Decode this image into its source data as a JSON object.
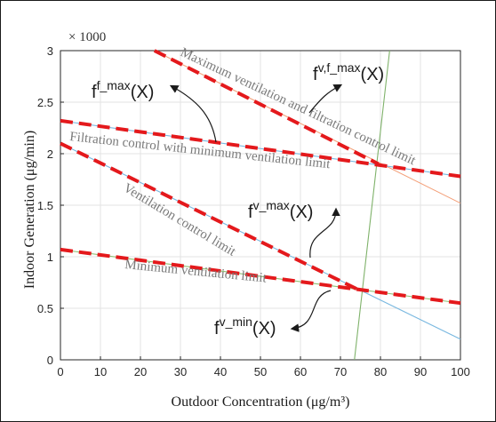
{
  "chart_data": {
    "type": "line",
    "xlabel": "Outdoor Concentration (μg/m³)",
    "ylabel": "Indoor Generation (μg/min)",
    "y_multiplier": "× 1000",
    "xlim": [
      0,
      100
    ],
    "ylim": [
      0,
      3
    ],
    "x_ticks": [
      0,
      10,
      20,
      30,
      40,
      50,
      60,
      70,
      80,
      90,
      100
    ],
    "y_ticks": [
      0,
      0.5,
      1,
      1.5,
      2,
      2.5,
      3
    ],
    "grid": true,
    "series": [
      {
        "name": "Maximum ventilation and filtration control limit",
        "color": "#f4a27c",
        "style": "solid-thin",
        "points": [
          [
            23.5,
            3.0
          ],
          [
            100,
            1.52
          ]
        ]
      },
      {
        "name": "Filtration control with minimum ventilation limit",
        "color": "#79b8e0",
        "style": "solid-thin",
        "points": [
          [
            0,
            2.32
          ],
          [
            100,
            1.78
          ]
        ]
      },
      {
        "name": "Ventilation control limit",
        "color": "#79b8e0",
        "style": "solid-thin",
        "points": [
          [
            0,
            2.1
          ],
          [
            100,
            0.2
          ]
        ]
      },
      {
        "name": "Minimum ventilation limit",
        "color": "#8fbf73",
        "style": "solid-thin",
        "points": [
          [
            0,
            1.07
          ],
          [
            100,
            0.55
          ]
        ]
      },
      {
        "name": "",
        "color": "#7fb26a",
        "style": "solid-thin",
        "points": [
          [
            73.5,
            0.0
          ],
          [
            82.3,
            3.0
          ]
        ]
      }
    ],
    "model_curves": [
      {
        "label": "f^{v,f_max}(X)",
        "color": "#e4191c",
        "points": [
          [
            23.5,
            3.0
          ],
          [
            79.5,
            1.9
          ]
        ]
      },
      {
        "label": "f^{f_max}(X)",
        "color": "#e4191c",
        "points": [
          [
            0,
            2.32
          ],
          [
            100,
            1.78
          ]
        ]
      },
      {
        "label": "f^{v_max}(X)",
        "color": "#e4191c",
        "points": [
          [
            0,
            2.1
          ],
          [
            75,
            0.67
          ]
        ]
      },
      {
        "label": "f^{v_min}(X)",
        "color": "#e4191c",
        "points": [
          [
            0,
            1.07
          ],
          [
            100,
            0.55
          ]
        ]
      }
    ],
    "annotations": {
      "max_vent_filt": "Maximum ventilation and filtration control limit",
      "filt_min_vent": "Filtration control with minimum ventilation limit",
      "vent_control": "Ventilation control limit",
      "min_vent": "Minimum ventilation limit",
      "f_vf_max": "f",
      "f_vf_max_sup": "v,f_max",
      "f_vf_max_arg": "(X)",
      "f_f_max": "f",
      "f_f_max_sup": "f_max",
      "f_f_max_arg": "(X)",
      "f_v_max": "f",
      "f_v_max_sup": "v_max",
      "f_v_max_arg": "(X)",
      "f_v_min": "f",
      "f_v_min_sup": "v_min",
      "f_v_min_arg": "(X)"
    }
  }
}
